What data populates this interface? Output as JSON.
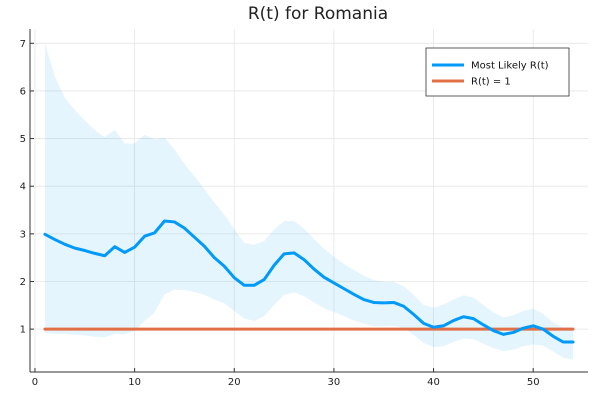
{
  "chart_data": {
    "type": "line",
    "title": "R(t) for Romania",
    "xlabel": "",
    "ylabel": "",
    "xlim": [
      -0.5,
      55.5
    ],
    "ylim": [
      0.1,
      7.3
    ],
    "xticks": [
      0,
      10,
      20,
      30,
      40,
      50
    ],
    "yticks": [
      1,
      2,
      3,
      4,
      5,
      6,
      7
    ],
    "grid": true,
    "legend_position": "top-right",
    "x": [
      1,
      2,
      3,
      4,
      5,
      6,
      7,
      8,
      9,
      10,
      11,
      12,
      13,
      14,
      15,
      16,
      17,
      18,
      19,
      20,
      21,
      22,
      23,
      24,
      25,
      26,
      27,
      28,
      29,
      30,
      31,
      32,
      33,
      34,
      35,
      36,
      37,
      38,
      39,
      40,
      41,
      42,
      43,
      44,
      45,
      46,
      47,
      48,
      49,
      50,
      51,
      52,
      53,
      54
    ],
    "series": [
      {
        "name": "Most Likely R(t)",
        "color": "#009AFA",
        "values": [
          2.99,
          2.88,
          2.78,
          2.7,
          2.65,
          2.59,
          2.54,
          2.73,
          2.61,
          2.72,
          2.95,
          3.02,
          3.27,
          3.25,
          3.12,
          2.93,
          2.74,
          2.5,
          2.32,
          2.08,
          1.92,
          1.92,
          2.04,
          2.34,
          2.58,
          2.6,
          2.46,
          2.26,
          2.09,
          1.97,
          1.85,
          1.73,
          1.62,
          1.56,
          1.55,
          1.56,
          1.48,
          1.31,
          1.12,
          1.04,
          1.07,
          1.18,
          1.26,
          1.22,
          1.09,
          0.97,
          0.89,
          0.93,
          1.02,
          1.07,
          1.0,
          0.85,
          0.73,
          0.73
        ],
        "band_upper": [
          7.0,
          6.3,
          5.85,
          5.6,
          5.38,
          5.18,
          5.03,
          5.18,
          4.9,
          4.9,
          5.08,
          4.98,
          5.02,
          4.77,
          4.47,
          4.21,
          3.94,
          3.66,
          3.4,
          3.1,
          2.81,
          2.77,
          2.85,
          3.09,
          3.27,
          3.27,
          3.11,
          2.89,
          2.69,
          2.52,
          2.37,
          2.24,
          2.12,
          2.03,
          1.99,
          1.99,
          1.9,
          1.72,
          1.51,
          1.45,
          1.52,
          1.62,
          1.71,
          1.66,
          1.51,
          1.35,
          1.25,
          1.29,
          1.38,
          1.43,
          1.32,
          1.14,
          1.04,
          1.04
        ],
        "band_lower": [
          0.92,
          0.9,
          0.9,
          0.88,
          0.87,
          0.84,
          0.83,
          0.9,
          0.89,
          0.96,
          1.17,
          1.35,
          1.73,
          1.83,
          1.82,
          1.78,
          1.72,
          1.62,
          1.54,
          1.38,
          1.22,
          1.17,
          1.27,
          1.51,
          1.72,
          1.77,
          1.69,
          1.56,
          1.44,
          1.36,
          1.27,
          1.18,
          1.11,
          1.06,
          1.06,
          1.07,
          1.02,
          0.88,
          0.71,
          0.62,
          0.64,
          0.73,
          0.8,
          0.79,
          0.69,
          0.6,
          0.54,
          0.57,
          0.64,
          0.68,
          0.65,
          0.53,
          0.4,
          0.36
        ]
      },
      {
        "name": "R(t) = 1",
        "color": "#E26F46",
        "values": [
          1,
          1,
          1,
          1,
          1,
          1,
          1,
          1,
          1,
          1,
          1,
          1,
          1,
          1,
          1,
          1,
          1,
          1,
          1,
          1,
          1,
          1,
          1,
          1,
          1,
          1,
          1,
          1,
          1,
          1,
          1,
          1,
          1,
          1,
          1,
          1,
          1,
          1,
          1,
          1,
          1,
          1,
          1,
          1,
          1,
          1,
          1,
          1,
          1,
          1,
          1,
          1,
          1,
          1
        ]
      }
    ],
    "band_color": "#009AFA"
  }
}
